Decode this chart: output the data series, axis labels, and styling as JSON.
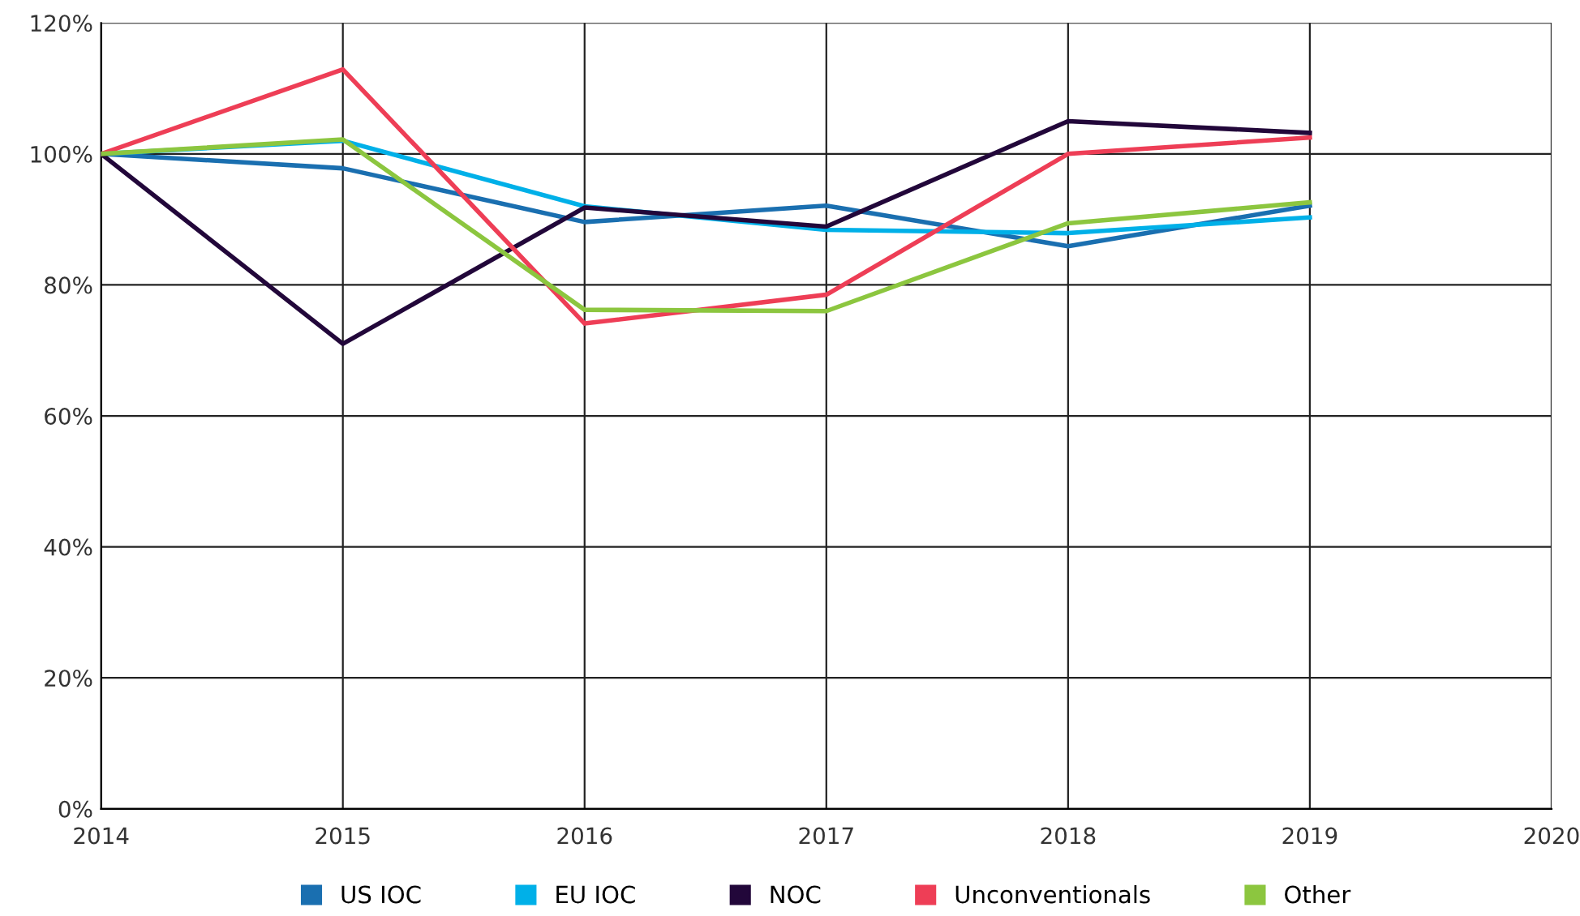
{
  "chart_data": {
    "type": "line",
    "x": [
      2014,
      2015,
      2016,
      2017,
      2018,
      2019
    ],
    "series": [
      {
        "name": "US IOC",
        "color": "#1a6fb0",
        "values": [
          100,
          97.8,
          89.6,
          92.1,
          85.9,
          92.1
        ]
      },
      {
        "name": "EU IOC",
        "color": "#00b0e8",
        "values": [
          100,
          102,
          92,
          88.4,
          87.9,
          90.3
        ]
      },
      {
        "name": "NOC",
        "color": "#22073a",
        "values": [
          100,
          71,
          91.8,
          88.9,
          105,
          103.2
        ]
      },
      {
        "name": "Unconventionals",
        "color": "#ee3e56",
        "values": [
          100,
          112.9,
          74.1,
          78.5,
          100,
          102.5
        ]
      },
      {
        "name": "Other",
        "color": "#8cc63f",
        "values": [
          100,
          102.2,
          76.2,
          76,
          89.4,
          92.6
        ]
      }
    ],
    "xlim": [
      2014,
      2020
    ],
    "xticks": [
      2014,
      2015,
      2016,
      2017,
      2018,
      2019,
      2020
    ],
    "ylim": [
      0,
      120
    ],
    "yticks": [
      {
        "value": 0,
        "label": "0%"
      },
      {
        "value": 20,
        "label": "20%"
      },
      {
        "value": 40,
        "label": "40%"
      },
      {
        "value": 60,
        "label": "60%"
      },
      {
        "value": 80,
        "label": "80%"
      },
      {
        "value": 100,
        "label": "100%"
      },
      {
        "value": 120,
        "label": "120%"
      }
    ],
    "grid": true,
    "legend": "bottom",
    "marker": "none",
    "line_style": "solid"
  }
}
